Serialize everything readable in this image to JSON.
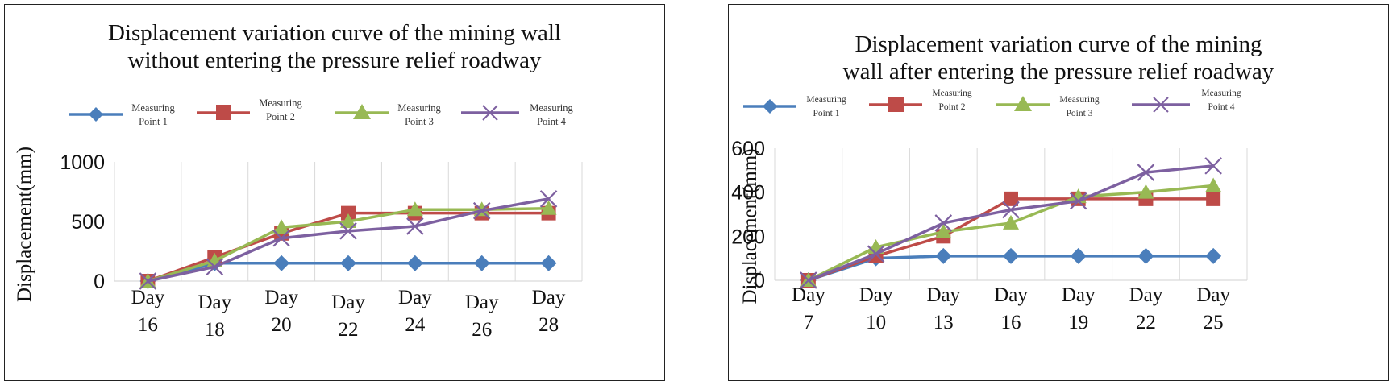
{
  "chart_data": [
    {
      "type": "line",
      "title": "Displacement variation curve of the mining wall without entering the pressure relief roadway",
      "title_lines": [
        "Displacement variation curve of the mining wall",
        "without entering the pressure relief roadway"
      ],
      "xlabel": "",
      "ylabel": "Displacement(mm)",
      "categories": [
        "Day 16",
        "Day 18",
        "Day 20",
        "Day 22",
        "Day 24",
        "Day 26",
        "Day 28"
      ],
      "category_parts": [
        [
          "Day",
          "16"
        ],
        [
          "Day",
          "18"
        ],
        [
          "Day",
          "20"
        ],
        [
          "Day",
          "22"
        ],
        [
          "Day",
          "24"
        ],
        [
          "Day",
          "26"
        ],
        [
          "Day",
          "28"
        ]
      ],
      "ylim": [
        0,
        1000
      ],
      "yticks": [
        0,
        500,
        1000
      ],
      "ytick_labels": [
        "0",
        "500",
        "1000"
      ],
      "grid": "vertical",
      "legend_position": "top",
      "series": [
        {
          "name": "Measuring Point 1",
          "label_lines": [
            "Measuring",
            "Point 1"
          ],
          "marker": "diamond",
          "color": "#4A7EBB",
          "values": [
            0,
            150,
            150,
            150,
            150,
            150,
            150
          ]
        },
        {
          "name": "Measuring Point 2",
          "label_lines": [
            "Measuring",
            "Point 2"
          ],
          "marker": "square",
          "color": "#BE4B48",
          "values": [
            0,
            200,
            400,
            570,
            570,
            570,
            570
          ]
        },
        {
          "name": "Measuring Point 3",
          "label_lines": [
            "Measuring",
            "Point 3"
          ],
          "marker": "triangle",
          "color": "#98B954",
          "values": [
            0,
            170,
            450,
            500,
            600,
            600,
            610
          ]
        },
        {
          "name": "Measuring Point 4",
          "label_lines": [
            "Measuring",
            "Point 4"
          ],
          "marker": "x",
          "color": "#7D60A0",
          "values": [
            0,
            120,
            360,
            420,
            460,
            590,
            690
          ]
        }
      ]
    },
    {
      "type": "line",
      "title": "Displacement variation curve of the mining wall after entering the pressure relief roadway",
      "title_lines": [
        "Displacement variation curve of the mining",
        "wall after entering the pressure relief roadway"
      ],
      "xlabel": "",
      "ylabel": "Displacement(mm)",
      "categories": [
        "Day 7",
        "Day 10",
        "Day 13",
        "Day 16",
        "Day 19",
        "Day 22",
        "Day 25"
      ],
      "category_parts": [
        [
          "Day",
          "7"
        ],
        [
          "Day",
          "10"
        ],
        [
          "Day",
          "13"
        ],
        [
          "Day",
          "16"
        ],
        [
          "Day",
          "19"
        ],
        [
          "Day",
          "22"
        ],
        [
          "Day",
          "25"
        ]
      ],
      "ylim": [
        0,
        600
      ],
      "yticks": [
        0,
        200,
        400,
        600
      ],
      "ytick_labels": [
        "0",
        "200",
        "400",
        "600"
      ],
      "grid": "vertical",
      "legend_position": "top",
      "series": [
        {
          "name": "Measuring Point 1",
          "label_lines": [
            "Measuring",
            "Point 1"
          ],
          "marker": "diamond",
          "color": "#4A7EBB",
          "values": [
            0,
            100,
            110,
            110,
            110,
            110,
            110
          ]
        },
        {
          "name": "Measuring Point 2",
          "label_lines": [
            "Measuring",
            "Point 2"
          ],
          "marker": "square",
          "color": "#BE4B48",
          "values": [
            0,
            110,
            200,
            370,
            370,
            370,
            370
          ]
        },
        {
          "name": "Measuring Point 3",
          "label_lines": [
            "Measuring",
            "Point 3"
          ],
          "marker": "triangle",
          "color": "#98B954",
          "values": [
            0,
            150,
            220,
            260,
            380,
            400,
            430
          ]
        },
        {
          "name": "Measuring Point 4",
          "label_lines": [
            "Measuring",
            "Point 4"
          ],
          "marker": "x",
          "color": "#7D60A0",
          "values": [
            0,
            120,
            260,
            320,
            360,
            490,
            520
          ]
        }
      ]
    }
  ]
}
